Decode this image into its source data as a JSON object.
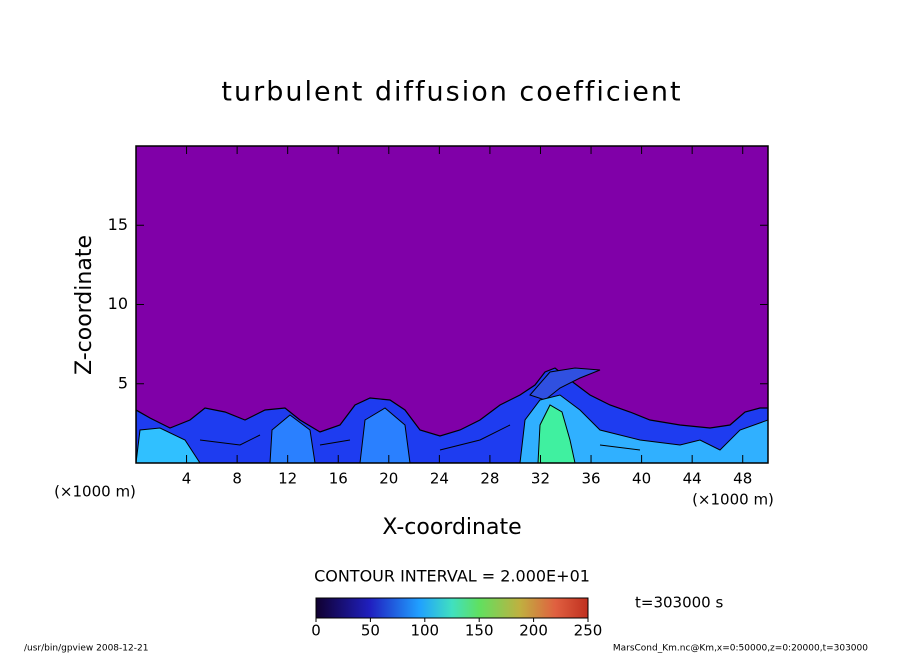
{
  "chart_data": {
    "type": "contour",
    "title": "turbulent diffusion coefficient",
    "x_label": "X-coordinate",
    "y_label": "Z-coordinate",
    "y_unit": "(×1000 m)",
    "x_unit": "(×1000 m)",
    "xlim": [
      0,
      50
    ],
    "xticks": [
      4,
      8,
      12,
      16,
      20,
      24,
      28,
      32,
      36,
      40,
      44,
      48
    ],
    "ylim": [
      0,
      20
    ],
    "yticks": [
      5,
      10,
      15
    ],
    "contour_interval": "CONTOUR INTERVAL = 2.000E+01",
    "colorbar": {
      "lim": [
        0,
        250
      ],
      "ticks": [
        0,
        50,
        100,
        150,
        200,
        250
      ]
    },
    "time": "t=303000 s",
    "footer_left": "/usr/bin/gpview   2008-12-21",
    "footer_right": "MarsCond_Km.nc@Km,x=0:50000,z=0:20000,t=303000"
  }
}
